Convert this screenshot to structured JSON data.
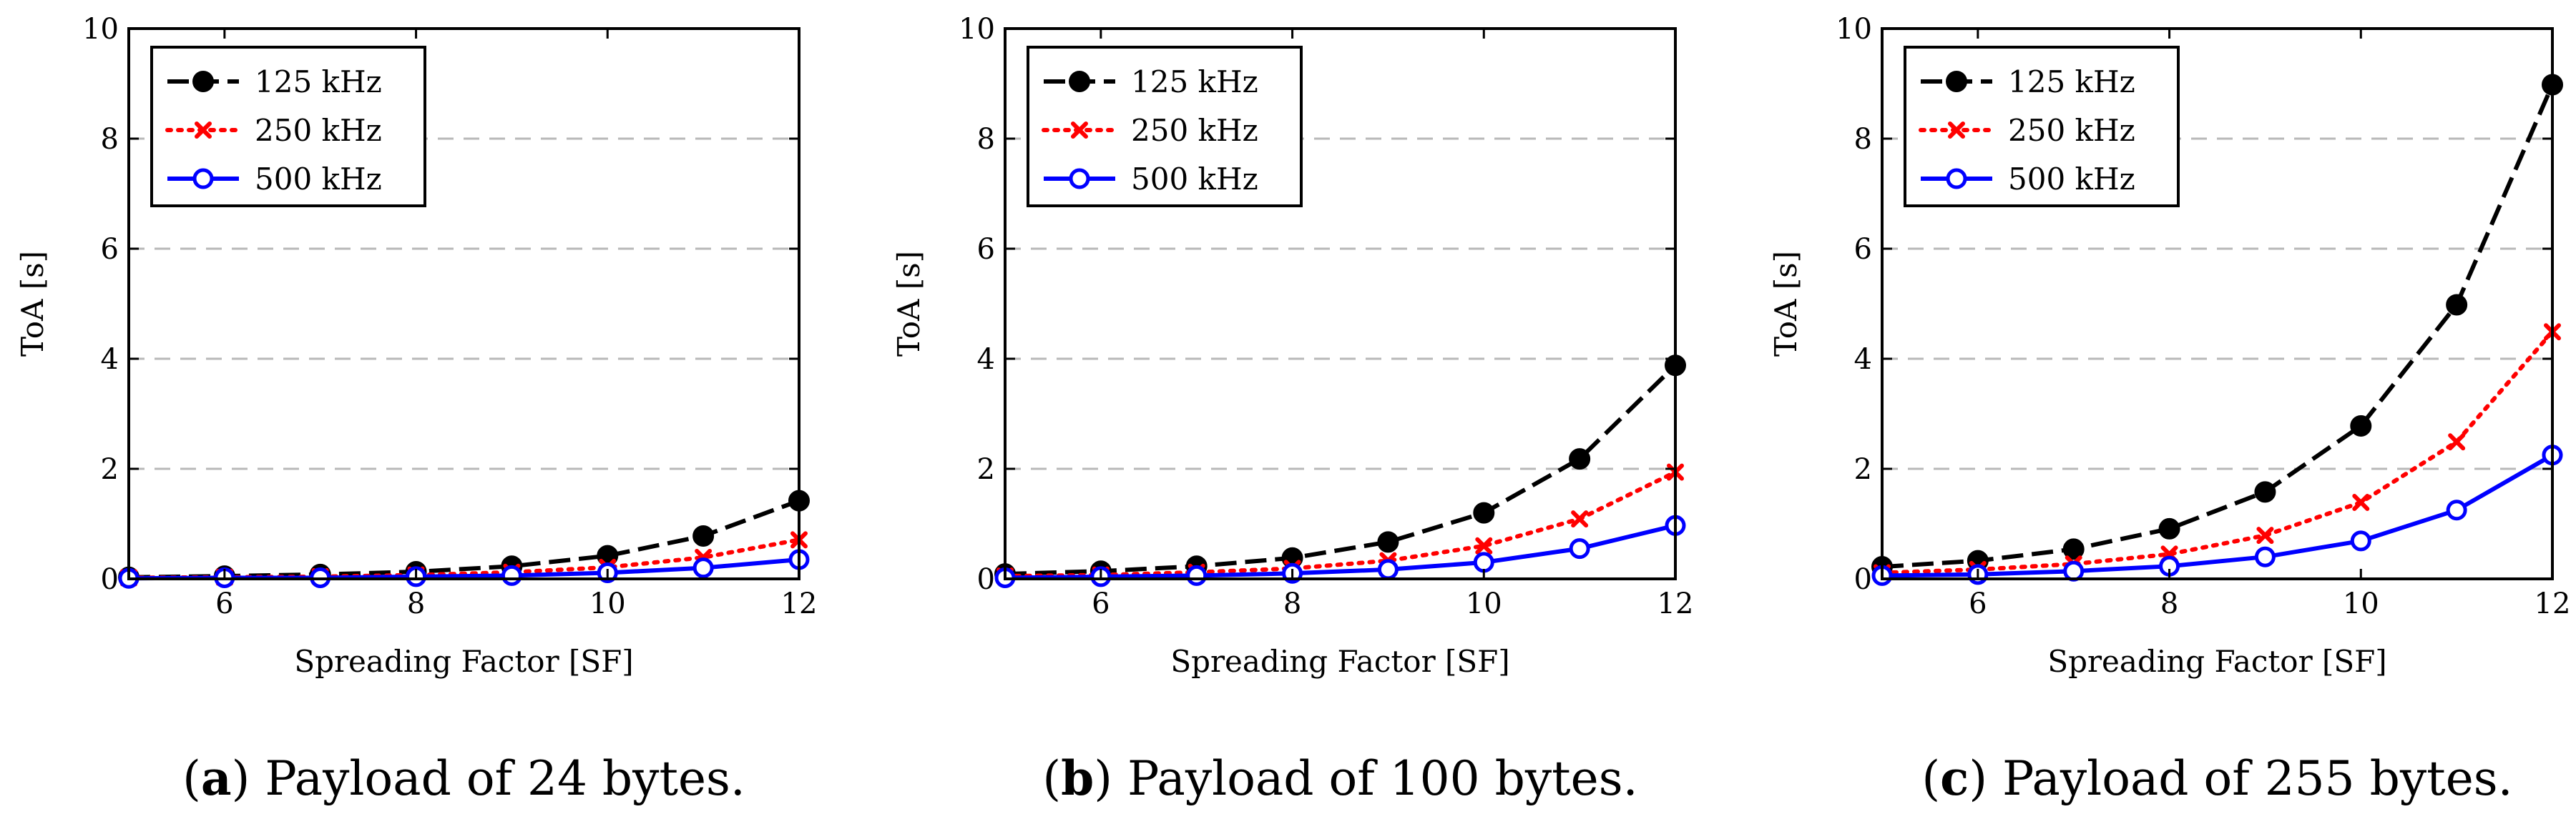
{
  "chart_data": [
    {
      "type": "line",
      "panel_letter": "a",
      "caption": "Payload of 24 bytes.",
      "xlabel": "Spreading Factor [SF]",
      "ylabel": "ToA [s]",
      "xlim": [
        5,
        12
      ],
      "ylim": [
        0,
        10
      ],
      "xticks": [
        6,
        8,
        10,
        12
      ],
      "yticks": [
        0,
        2,
        4,
        6,
        8,
        10
      ],
      "grid": "y-dashed",
      "legend_position": "top-left",
      "x": [
        5,
        6,
        7,
        8,
        9,
        10,
        11,
        12
      ],
      "series": [
        {
          "name": "125 kHz",
          "color": "#000000",
          "style": "dashed",
          "marker": "filled-circle",
          "values": [
            0.03,
            0.05,
            0.08,
            0.13,
            0.23,
            0.42,
            0.78,
            1.42
          ]
        },
        {
          "name": "250 kHz",
          "color": "#ff0000",
          "style": "dotted",
          "marker": "cross",
          "values": [
            0.02,
            0.03,
            0.04,
            0.07,
            0.12,
            0.21,
            0.39,
            0.71
          ]
        },
        {
          "name": "500 kHz",
          "color": "#0000ff",
          "style": "solid",
          "marker": "open-circle",
          "values": [
            0.01,
            0.02,
            0.02,
            0.04,
            0.06,
            0.11,
            0.2,
            0.35
          ]
        }
      ]
    },
    {
      "type": "line",
      "panel_letter": "b",
      "caption": "Payload of 100 bytes.",
      "xlabel": "Spreading Factor [SF]",
      "ylabel": "ToA [s]",
      "xlim": [
        5,
        12
      ],
      "ylim": [
        0,
        10
      ],
      "xticks": [
        6,
        8,
        10,
        12
      ],
      "yticks": [
        0,
        2,
        4,
        6,
        8,
        10
      ],
      "grid": "y-dashed",
      "legend_position": "top-left",
      "x": [
        5,
        6,
        7,
        8,
        9,
        10,
        11,
        12
      ],
      "series": [
        {
          "name": "125 kHz",
          "color": "#000000",
          "style": "dashed",
          "marker": "filled-circle",
          "values": [
            0.09,
            0.14,
            0.23,
            0.38,
            0.67,
            1.2,
            2.18,
            3.88
          ]
        },
        {
          "name": "250 kHz",
          "color": "#ff0000",
          "style": "dotted",
          "marker": "cross",
          "values": [
            0.05,
            0.07,
            0.12,
            0.19,
            0.33,
            0.6,
            1.09,
            1.94
          ]
        },
        {
          "name": "500 kHz",
          "color": "#0000ff",
          "style": "solid",
          "marker": "open-circle",
          "values": [
            0.02,
            0.04,
            0.06,
            0.1,
            0.17,
            0.3,
            0.55,
            0.97
          ]
        }
      ]
    },
    {
      "type": "line",
      "panel_letter": "c",
      "caption": "Payload of 255 bytes.",
      "xlabel": "Spreading Factor [SF]",
      "ylabel": "ToA [s]",
      "xlim": [
        5,
        12
      ],
      "ylim": [
        0,
        10
      ],
      "xticks": [
        6,
        8,
        10,
        12
      ],
      "yticks": [
        0,
        2,
        4,
        6,
        8,
        10
      ],
      "grid": "y-dashed",
      "legend_position": "top-left",
      "x": [
        5,
        6,
        7,
        8,
        9,
        10,
        11,
        12
      ],
      "series": [
        {
          "name": "125 kHz",
          "color": "#000000",
          "style": "dashed",
          "marker": "filled-circle",
          "values": [
            0.22,
            0.33,
            0.54,
            0.91,
            1.58,
            2.78,
            4.98,
            8.98
          ]
        },
        {
          "name": "250 kHz",
          "color": "#ff0000",
          "style": "dotted",
          "marker": "cross",
          "values": [
            0.11,
            0.17,
            0.27,
            0.45,
            0.79,
            1.39,
            2.49,
            4.49
          ]
        },
        {
          "name": "500 kHz",
          "color": "#0000ff",
          "style": "solid",
          "marker": "open-circle",
          "values": [
            0.06,
            0.08,
            0.14,
            0.23,
            0.4,
            0.69,
            1.25,
            2.25
          ]
        }
      ]
    }
  ]
}
